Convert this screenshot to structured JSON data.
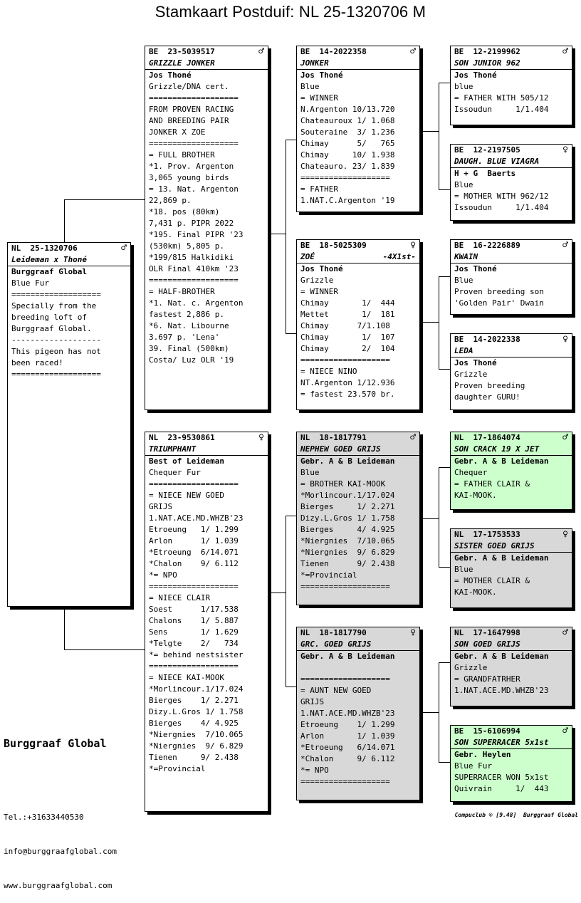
{
  "title": "Stamkaart Postduif: NL  25-1320706 M",
  "brand": "Burggraaf Global",
  "contact": [
    "Tel.:+31633440530",
    "info@burggraafglobal.com",
    "www.burggraafglobal.com"
  ],
  "footer": "Compuclub © [9.48]  Burggraaf Global",
  "cards": {
    "subject": {
      "ring": "NL  25-1320706",
      "sex": "♂",
      "name": "Leideman x Thoné",
      "name_right": "",
      "lines": [
        "Burggraaf Global",
        "Blue Fur",
        "===================",
        "Specially from the",
        "breeding loft of",
        "Burggraaf Global.",
        "-------------------",
        "This pigeon has not",
        "been raced!",
        "==================="
      ]
    },
    "father": {
      "ring": "BE  23-5039517",
      "sex": "♂",
      "name": "GRIZZLE JONKER",
      "name_right": "",
      "lines": [
        "Jos Thoné",
        "Grizzle/DNA cert.",
        "===================",
        "FROM PROVEN RACING",
        "AND BREEDING PAIR",
        "JONKER X ZOE",
        "===================",
        "= FULL BROTHER",
        "*1. Prov. Argenton",
        "3,065 young birds",
        "= 13. Nat. Argenton",
        "22,869 p.",
        "*18. pos (80km)",
        "7,431 p. PIPR 2022",
        "*195. Final PIPR '23",
        "(530km) 5,805 p.",
        "*199/815 Halkidiki",
        "OLR Final 410km '23",
        "===================",
        "= HALF-BROTHER",
        "*1. Nat. c. Argenton",
        "fastest 2,886 p.",
        "*6. Nat. Libourne",
        "3.697 p. 'Lena'",
        "39. Final (500km)",
        "Costa/ Luz OLR '19"
      ]
    },
    "mother": {
      "ring": "NL  23-9530861",
      "sex": "♀",
      "name": "TRIUMPHANT",
      "name_right": "",
      "lines": [
        "Best of Leideman",
        "Chequer Fur",
        "===================",
        "= NIECE NEW GOED",
        "GRIJS",
        "1.NAT.ACE.MD.WHZB'23",
        "Etroeung   1/ 1.299",
        "Arlon      1/ 1.039",
        "*Etroeung  6/14.071",
        "*Chalon    9/ 6.112",
        "*= NPO",
        "===================",
        "= NIECE CLAIR",
        "Soest      1/17.538",
        "Chalons    1/ 5.887",
        "Sens       1/ 1.629",
        "*Telgte    2/   734",
        "*= behind nestsister",
        "===================",
        "= NIECE KAI-MOOK",
        "*Morlincour.1/17.024",
        "Bierges    1/ 2.271",
        "Dizy.L.Gros 1/ 1.758",
        "Bierges    4/ 4.925",
        "*Niergnies  7/10.065",
        "*Niergnies  9/ 6.829",
        "Tienen     9/ 2.438",
        "*=Provincial"
      ]
    },
    "ff": {
      "ring": "BE  14-2022358",
      "sex": "♂",
      "name": "JONKER",
      "name_right": "",
      "lines": [
        "Jos Thoné",
        "Blue",
        "= WINNER",
        "N.Argenton 10/13.720",
        "Chateauroux 1/ 1.068",
        "Souteraine  3/ 1.236",
        "Chimay      5/   765",
        "Chimay     10/ 1.938",
        "Chateauro. 23/ 1.839",
        "===================",
        "= FATHER",
        "1.NAT.C.Argenton '19"
      ]
    },
    "fm": {
      "ring": "BE  18-5025309",
      "sex": "♀",
      "name": "ZOÉ",
      "name_right": "-4X1st-",
      "lines": [
        "Jos Thoné",
        "Grizzle",
        "= WINNER",
        "Chimay       1/  444",
        "Mettet       1/  181",
        "Chimay      7/1.108",
        "Chimay       1/  107",
        "Chimay       2/  104",
        "===================",
        "= NIECE NINO",
        "NT.Argenton 1/12.936",
        "= fastest 23.570 br."
      ]
    },
    "mf": {
      "ring": "NL  18-1817791",
      "sex": "♂",
      "name": "NEPHEW GOED GRIJS",
      "name_right": "",
      "lines": [
        "Gebr. A & B Leideman",
        "Blue",
        "= BROTHER KAI-MOOK",
        "*Morlincour.1/17.024",
        "Bierges     1/ 2.271",
        "Dizy.L.Gros 1/ 1.758",
        "Bierges     4/ 4.925",
        "*Niergnies  7/10.065",
        "*Niergnies  9/ 6.829",
        "Tienen      9/ 2.438",
        "*=Provincial",
        "==================="
      ]
    },
    "mm": {
      "ring": "NL  18-1817790",
      "sex": "♀",
      "name": "GRC. GOED GRIJS",
      "name_right": "",
      "lines": [
        "Gebr. A & B Leideman",
        "",
        "===================",
        "= AUNT NEW GOED",
        "GRIJS",
        "1.NAT.ACE.MD.WHZB'23",
        "Etroeung    1/ 1.299",
        "Arlon       1/ 1.039",
        "*Etroeung   6/14.071",
        "*Chalon     9/ 6.112",
        "*= NPO",
        "==================="
      ]
    },
    "fff": {
      "ring": "BE  12-2199962",
      "sex": "♂",
      "name": "SON JUNIOR 962",
      "name_right": "",
      "lines": [
        "Jos Thoné",
        "blue",
        "= FATHER WITH 505/12",
        "Issoudun     1/1.404"
      ]
    },
    "ffm": {
      "ring": "BE  12-2197505",
      "sex": "♀",
      "name": "DAUGH. BLUE VIAGRA",
      "name_right": "",
      "lines": [
        "H + G  Baerts",
        "Blue",
        "= MOTHER WITH 962/12",
        "Issoudun     1/1.404"
      ]
    },
    "fmf": {
      "ring": "BE  16-2226889",
      "sex": "♂",
      "name": "KWAIN",
      "name_right": "",
      "lines": [
        "Jos Thoné",
        "Blue",
        "Proven breeding son",
        "'Golden Pair' Dwain"
      ]
    },
    "fmm": {
      "ring": "BE  14-2022338",
      "sex": "♀",
      "name": "LEDA",
      "name_right": "",
      "lines": [
        "Jos Thoné",
        "Grizzle",
        "Proven breeding",
        "daughter GURU!"
      ]
    },
    "mff": {
      "ring": "NL  17-1864074",
      "sex": "♂",
      "name": "SON CRACK 19 X JET",
      "name_right": "",
      "lines": [
        "Gebr. A & B Leideman",
        "Chequer",
        "= FATHER CLAIR &",
        "KAI-MOOK."
      ]
    },
    "mfm": {
      "ring": "NL  17-1753533",
      "sex": "♀",
      "name": "SISTER GOED GRIJS",
      "name_right": "",
      "lines": [
        "Gebr. A & B Leideman",
        "Blue",
        "= MOTHER CLAIR &",
        "KAI-MOOK."
      ]
    },
    "mmf": {
      "ring": "NL  17-1647998",
      "sex": "♂",
      "name": "SON GOED GRIJS",
      "name_right": "",
      "lines": [
        "Gebr. A & B Leideman",
        "Grizzle",
        "= GRANDFATRHER",
        "1.NAT.ACE.MD.WHZB'23"
      ]
    },
    "mmm": {
      "ring": "BE  15-6106994",
      "sex": "♂",
      "name": "SON SUPERRACER 5x1st",
      "name_right": "",
      "lines": [
        "Gebr. Heylen",
        "Blue Fur",
        "SUPERRACER WON 5x1st",
        "Quivrain     1/  443"
      ]
    }
  }
}
